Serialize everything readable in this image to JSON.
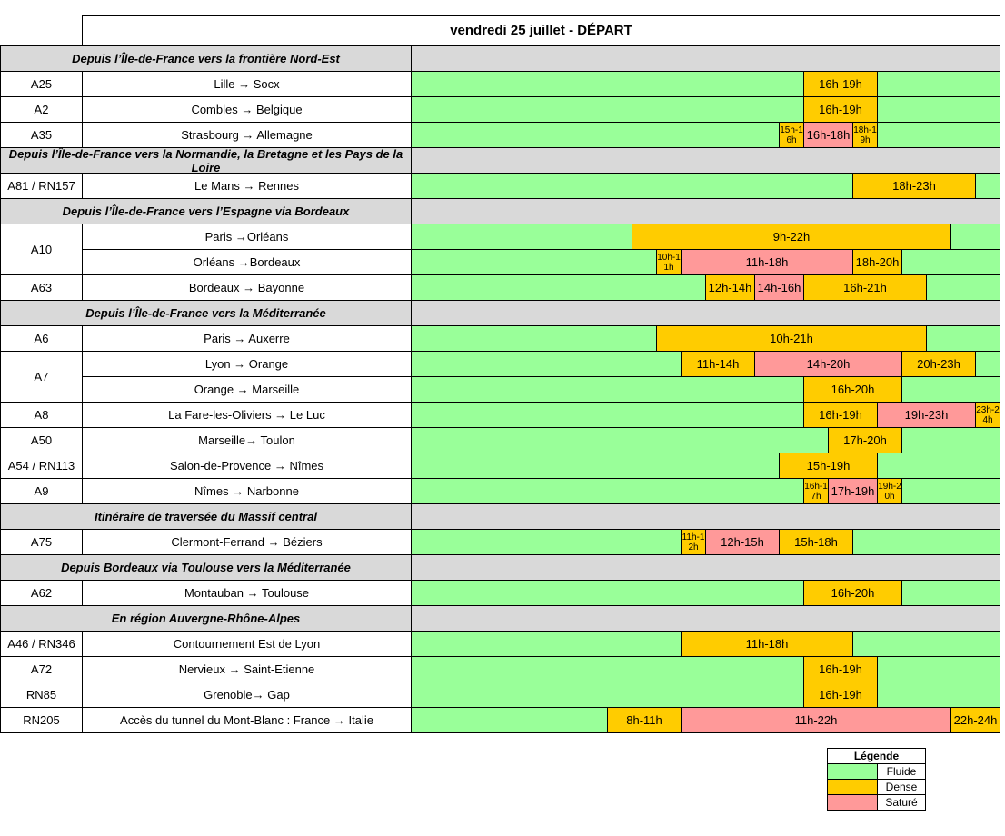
{
  "header": {
    "title": "vendredi 25 juillet  - DÉPART"
  },
  "legend": {
    "title": "Légende",
    "items": [
      {
        "name": "Fluide",
        "color": "#99ff99"
      },
      {
        "name": "Dense",
        "color": "#ffcc00"
      },
      {
        "name": "Saturé",
        "color": "#ff9999"
      }
    ]
  },
  "groups": [
    {
      "title": "Depuis l’Île-de-France vers la frontière Nord-Est",
      "rows": [
        {
          "road": "A25",
          "routes": [
            {
              "name": "Lille → Socx",
              "segments": [
                {
                  "label": "16h-19h",
                  "start": 16,
                  "end": 19,
                  "status": "Dense"
                }
              ]
            }
          ]
        },
        {
          "road": "A2",
          "routes": [
            {
              "name": "Combles → Belgique",
              "segments": [
                {
                  "label": "16h-19h",
                  "start": 16,
                  "end": 19,
                  "status": "Dense"
                }
              ]
            }
          ]
        },
        {
          "road": "A35",
          "routes": [
            {
              "name": "Strasbourg → Allemagne",
              "segments": [
                {
                  "label": "15h-16h",
                  "start": 15,
                  "end": 16,
                  "status": "Dense"
                },
                {
                  "label": "16h-18h",
                  "start": 16,
                  "end": 18,
                  "status": "Saturé"
                },
                {
                  "label": "18h-19h",
                  "start": 18,
                  "end": 19,
                  "status": "Dense"
                }
              ]
            }
          ]
        }
      ]
    },
    {
      "title": "Depuis l’Île-de-France vers la Normandie, la Bretagne et les Pays de la Loire",
      "rows": [
        {
          "road": "A81 / RN157",
          "routes": [
            {
              "name": "Le Mans → Rennes",
              "segments": [
                {
                  "label": "18h-23h",
                  "start": 18,
                  "end": 23,
                  "status": "Dense"
                }
              ]
            }
          ]
        }
      ]
    },
    {
      "title": "Depuis l’Île-de-France vers l’Espagne via Bordeaux",
      "rows": [
        {
          "road": "A10",
          "routes": [
            {
              "name": "Paris →Orléans",
              "segments": [
                {
                  "label": "9h-22h",
                  "start": 9,
                  "end": 22,
                  "status": "Dense"
                }
              ]
            },
            {
              "name": "Orléans →Bordeaux",
              "segments": [
                {
                  "label": "10h-11h",
                  "start": 10,
                  "end": 11,
                  "status": "Dense"
                },
                {
                  "label": "11h-18h",
                  "start": 11,
                  "end": 18,
                  "status": "Saturé"
                },
                {
                  "label": "18h-20h",
                  "start": 18,
                  "end": 20,
                  "status": "Dense"
                }
              ]
            }
          ]
        },
        {
          "road": "A63",
          "routes": [
            {
              "name": "Bordeaux → Bayonne",
              "segments": [
                {
                  "label": "12h-14h",
                  "start": 12,
                  "end": 14,
                  "status": "Dense"
                },
                {
                  "label": "14h-16h",
                  "start": 14,
                  "end": 16,
                  "status": "Saturé"
                },
                {
                  "label": "16h-21h",
                  "start": 16,
                  "end": 21,
                  "status": "Dense"
                }
              ]
            }
          ]
        }
      ]
    },
    {
      "title": "Depuis l’Île-de-France vers la Méditerranée",
      "rows": [
        {
          "road": "A6",
          "routes": [
            {
              "name": "Paris → Auxerre",
              "segments": [
                {
                  "label": "10h-21h",
                  "start": 10,
                  "end": 21,
                  "status": "Dense"
                }
              ]
            }
          ]
        },
        {
          "road": "A7",
          "routes": [
            {
              "name": "Lyon → Orange",
              "segments": [
                {
                  "label": "11h-14h",
                  "start": 11,
                  "end": 14,
                  "status": "Dense"
                },
                {
                  "label": "14h-20h",
                  "start": 14,
                  "end": 20,
                  "status": "Saturé"
                },
                {
                  "label": "20h-23h",
                  "start": 20,
                  "end": 23,
                  "status": "Dense"
                }
              ]
            },
            {
              "name": "Orange → Marseille",
              "segments": [
                {
                  "label": "16h-20h",
                  "start": 16,
                  "end": 20,
                  "status": "Dense"
                }
              ]
            }
          ]
        },
        {
          "road": "A8",
          "routes": [
            {
              "name": "La Fare-les-Oliviers → Le Luc",
              "segments": [
                {
                  "label": "16h-19h",
                  "start": 16,
                  "end": 19,
                  "status": "Dense"
                },
                {
                  "label": "19h-23h",
                  "start": 19,
                  "end": 23,
                  "status": "Saturé"
                },
                {
                  "label": "23h-24h",
                  "start": 23,
                  "end": 24,
                  "status": "Dense"
                }
              ]
            }
          ]
        },
        {
          "road": "A50",
          "routes": [
            {
              "name": "Marseille→ Toulon",
              "segments": [
                {
                  "label": "17h-20h",
                  "start": 17,
                  "end": 20,
                  "status": "Dense"
                }
              ]
            }
          ]
        },
        {
          "road": "A54 / RN113",
          "routes": [
            {
              "name": "Salon-de-Provence → Nîmes",
              "segments": [
                {
                  "label": "15h-19h",
                  "start": 15,
                  "end": 19,
                  "status": "Dense"
                }
              ]
            }
          ]
        },
        {
          "road": "A9",
          "routes": [
            {
              "name": "Nîmes → Narbonne",
              "segments": [
                {
                  "label": "16h-17h",
                  "start": 16,
                  "end": 17,
                  "status": "Dense"
                },
                {
                  "label": "17h-19h",
                  "start": 17,
                  "end": 19,
                  "status": "Saturé"
                },
                {
                  "label": "19h-20h",
                  "start": 19,
                  "end": 20,
                  "status": "Dense"
                }
              ]
            }
          ]
        }
      ]
    },
    {
      "title": "Itinéraire de traversée du Massif central",
      "rows": [
        {
          "road": "A75",
          "routes": [
            {
              "name": "Clermont-Ferrand → Béziers",
              "segments": [
                {
                  "label": "11h-12h",
                  "start": 11,
                  "end": 12,
                  "status": "Dense"
                },
                {
                  "label": "12h-15h",
                  "start": 12,
                  "end": 15,
                  "status": "Saturé"
                },
                {
                  "label": "15h-18h",
                  "start": 15,
                  "end": 18,
                  "status": "Dense"
                }
              ]
            }
          ]
        }
      ]
    },
    {
      "title": "Depuis Bordeaux via Toulouse vers la Méditerranée",
      "rows": [
        {
          "road": "A62",
          "routes": [
            {
              "name": "Montauban → Toulouse",
              "segments": [
                {
                  "label": "16h-20h",
                  "start": 16,
                  "end": 20,
                  "status": "Dense"
                }
              ]
            }
          ]
        }
      ]
    },
    {
      "title": "En région Auvergne-Rhône-Alpes",
      "rows": [
        {
          "road": "A46 / RN346",
          "routes": [
            {
              "name": "Contournement Est de Lyon",
              "segments": [
                {
                  "label": "11h-18h",
                  "start": 11,
                  "end": 18,
                  "status": "Dense"
                }
              ]
            }
          ]
        },
        {
          "road": "A72",
          "routes": [
            {
              "name": "Nervieux → Saint-Etienne",
              "segments": [
                {
                  "label": "16h-19h",
                  "start": 16,
                  "end": 19,
                  "status": "Dense"
                }
              ]
            }
          ]
        },
        {
          "road": "RN85",
          "routes": [
            {
              "name": "Grenoble→ Gap",
              "segments": [
                {
                  "label": "16h-19h",
                  "start": 16,
                  "end": 19,
                  "status": "Dense"
                }
              ]
            }
          ]
        },
        {
          "road": "RN205",
          "routes": [
            {
              "name": "Accès du tunnel du Mont-Blanc : France → Italie",
              "segments": [
                {
                  "label": "8h-11h",
                  "start": 8,
                  "end": 11,
                  "status": "Dense"
                },
                {
                  "label": "11h-22h",
                  "start": 11,
                  "end": 22,
                  "status": "Saturé"
                },
                {
                  "label": "22h-24h",
                  "start": 22,
                  "end": 24,
                  "status": "Dense"
                }
              ]
            }
          ]
        }
      ]
    }
  ]
}
